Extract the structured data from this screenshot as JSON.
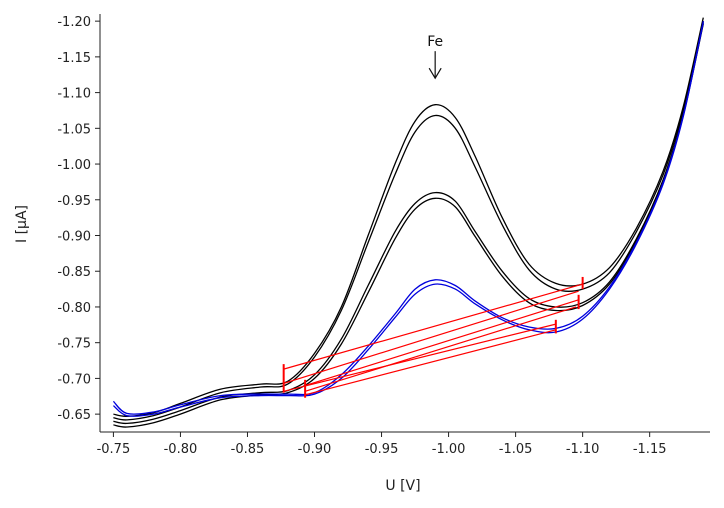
{
  "chart_data": {
    "type": "line",
    "title": "",
    "xlabel": "U [V]",
    "ylabel": "I [µA]",
    "xlim": [
      -0.74,
      -1.195
    ],
    "ylim": [
      -0.625,
      -1.21
    ],
    "x_ticks": [
      -0.75,
      -0.8,
      -0.85,
      -0.9,
      -0.95,
      -1.0,
      -1.05,
      -1.1,
      -1.15
    ],
    "x_tick_labels": [
      "-0.75",
      "-0.80",
      "-0.85",
      "-0.90",
      "-0.95",
      "-1.00",
      "-1.05",
      "-1.10",
      "-1.15"
    ],
    "y_ticks": [
      -0.65,
      -0.7,
      -0.75,
      -0.8,
      -0.85,
      -0.9,
      -0.95,
      -1.0,
      -1.05,
      -1.1,
      -1.15,
      -1.2
    ],
    "y_tick_labels": [
      "-0.65",
      "-0.70",
      "-0.75",
      "-0.80",
      "-0.85",
      "-0.90",
      "-0.95",
      "-1.00",
      "-1.05",
      "-1.10",
      "-1.15",
      "-1.20"
    ],
    "grid": false,
    "annotations": [
      {
        "text": "Fe",
        "x": -0.99,
        "y": -1.165
      }
    ],
    "series": [
      {
        "color": "#000000",
        "points": [
          [
            -0.75,
            -0.65
          ],
          [
            -0.76,
            -0.647
          ],
          [
            -0.78,
            -0.652
          ],
          [
            -0.8,
            -0.665
          ],
          [
            -0.83,
            -0.685
          ],
          [
            -0.86,
            -0.692
          ],
          [
            -0.88,
            -0.696
          ],
          [
            -0.9,
            -0.735
          ],
          [
            -0.92,
            -0.8
          ],
          [
            -0.94,
            -0.9
          ],
          [
            -0.96,
            -1.0
          ],
          [
            -0.975,
            -1.06
          ],
          [
            -0.99,
            -1.083
          ],
          [
            -1.005,
            -1.065
          ],
          [
            -1.02,
            -1.01
          ],
          [
            -1.04,
            -0.925
          ],
          [
            -1.06,
            -0.86
          ],
          [
            -1.08,
            -0.833
          ],
          [
            -1.1,
            -0.832
          ],
          [
            -1.12,
            -0.855
          ],
          [
            -1.14,
            -0.91
          ],
          [
            -1.16,
            -0.99
          ],
          [
            -1.175,
            -1.08
          ],
          [
            -1.19,
            -1.205
          ]
        ]
      },
      {
        "color": "#000000",
        "points": [
          [
            -0.75,
            -0.645
          ],
          [
            -0.76,
            -0.642
          ],
          [
            -0.78,
            -0.648
          ],
          [
            -0.8,
            -0.66
          ],
          [
            -0.83,
            -0.68
          ],
          [
            -0.86,
            -0.688
          ],
          [
            -0.88,
            -0.692
          ],
          [
            -0.9,
            -0.73
          ],
          [
            -0.92,
            -0.795
          ],
          [
            -0.94,
            -0.89
          ],
          [
            -0.96,
            -0.985
          ],
          [
            -0.975,
            -1.045
          ],
          [
            -0.99,
            -1.068
          ],
          [
            -1.005,
            -1.05
          ],
          [
            -1.02,
            -0.995
          ],
          [
            -1.04,
            -0.915
          ],
          [
            -1.06,
            -0.852
          ],
          [
            -1.08,
            -0.825
          ],
          [
            -1.1,
            -0.825
          ],
          [
            -1.12,
            -0.848
          ],
          [
            -1.14,
            -0.905
          ],
          [
            -1.16,
            -0.985
          ],
          [
            -1.175,
            -1.075
          ],
          [
            -1.19,
            -1.2
          ]
        ]
      },
      {
        "color": "#000000",
        "points": [
          [
            -0.75,
            -0.64
          ],
          [
            -0.76,
            -0.637
          ],
          [
            -0.78,
            -0.643
          ],
          [
            -0.8,
            -0.655
          ],
          [
            -0.83,
            -0.674
          ],
          [
            -0.86,
            -0.68
          ],
          [
            -0.88,
            -0.683
          ],
          [
            -0.9,
            -0.705
          ],
          [
            -0.92,
            -0.755
          ],
          [
            -0.94,
            -0.83
          ],
          [
            -0.96,
            -0.905
          ],
          [
            -0.975,
            -0.945
          ],
          [
            -0.99,
            -0.96
          ],
          [
            -1.005,
            -0.948
          ],
          [
            -1.02,
            -0.905
          ],
          [
            -1.04,
            -0.85
          ],
          [
            -1.06,
            -0.812
          ],
          [
            -1.08,
            -0.8
          ],
          [
            -1.1,
            -0.806
          ],
          [
            -1.12,
            -0.835
          ],
          [
            -1.14,
            -0.895
          ],
          [
            -1.16,
            -0.978
          ],
          [
            -1.175,
            -1.07
          ],
          [
            -1.19,
            -1.198
          ]
        ]
      },
      {
        "color": "#000000",
        "points": [
          [
            -0.75,
            -0.635
          ],
          [
            -0.76,
            -0.632
          ],
          [
            -0.78,
            -0.638
          ],
          [
            -0.8,
            -0.65
          ],
          [
            -0.83,
            -0.67
          ],
          [
            -0.86,
            -0.677
          ],
          [
            -0.88,
            -0.68
          ],
          [
            -0.9,
            -0.7
          ],
          [
            -0.92,
            -0.748
          ],
          [
            -0.94,
            -0.82
          ],
          [
            -0.96,
            -0.895
          ],
          [
            -0.975,
            -0.937
          ],
          [
            -0.99,
            -0.952
          ],
          [
            -1.005,
            -0.94
          ],
          [
            -1.02,
            -0.898
          ],
          [
            -1.04,
            -0.843
          ],
          [
            -1.06,
            -0.806
          ],
          [
            -1.08,
            -0.795
          ],
          [
            -1.1,
            -0.802
          ],
          [
            -1.12,
            -0.832
          ],
          [
            -1.14,
            -0.892
          ],
          [
            -1.16,
            -0.975
          ],
          [
            -1.175,
            -1.068
          ],
          [
            -1.19,
            -1.196
          ]
        ]
      },
      {
        "color": "#0000dd",
        "points": [
          [
            -0.75,
            -0.668
          ],
          [
            -0.76,
            -0.651
          ],
          [
            -0.78,
            -0.653
          ],
          [
            -0.8,
            -0.663
          ],
          [
            -0.83,
            -0.676
          ],
          [
            -0.86,
            -0.678
          ],
          [
            -0.88,
            -0.678
          ],
          [
            -0.9,
            -0.68
          ],
          [
            -0.92,
            -0.705
          ],
          [
            -0.94,
            -0.745
          ],
          [
            -0.96,
            -0.79
          ],
          [
            -0.975,
            -0.825
          ],
          [
            -0.99,
            -0.838
          ],
          [
            -1.005,
            -0.83
          ],
          [
            -1.02,
            -0.808
          ],
          [
            -1.04,
            -0.785
          ],
          [
            -1.06,
            -0.772
          ],
          [
            -1.08,
            -0.77
          ],
          [
            -1.1,
            -0.787
          ],
          [
            -1.12,
            -0.828
          ],
          [
            -1.14,
            -0.89
          ],
          [
            -1.16,
            -0.974
          ],
          [
            -1.175,
            -1.068
          ],
          [
            -1.19,
            -1.2
          ]
        ]
      },
      {
        "color": "#0000dd",
        "points": [
          [
            -0.75,
            -0.662
          ],
          [
            -0.76,
            -0.648
          ],
          [
            -0.78,
            -0.65
          ],
          [
            -0.8,
            -0.66
          ],
          [
            -0.83,
            -0.673
          ],
          [
            -0.86,
            -0.676
          ],
          [
            -0.88,
            -0.676
          ],
          [
            -0.9,
            -0.678
          ],
          [
            -0.92,
            -0.7
          ],
          [
            -0.94,
            -0.74
          ],
          [
            -0.96,
            -0.785
          ],
          [
            -0.975,
            -0.818
          ],
          [
            -0.99,
            -0.832
          ],
          [
            -1.005,
            -0.825
          ],
          [
            -1.02,
            -0.804
          ],
          [
            -1.04,
            -0.782
          ],
          [
            -1.06,
            -0.768
          ],
          [
            -1.08,
            -0.765
          ],
          [
            -1.1,
            -0.783
          ],
          [
            -1.12,
            -0.825
          ],
          [
            -1.14,
            -0.888
          ],
          [
            -1.16,
            -0.972
          ],
          [
            -1.175,
            -1.066
          ],
          [
            -1.19,
            -1.198
          ]
        ]
      }
    ],
    "baselines": [
      {
        "color": "#ff0000",
        "x1": -0.877,
        "y1": -0.713,
        "x2": -1.1,
        "y2": -0.832
      },
      {
        "color": "#ff0000",
        "x1": -0.877,
        "y1": -0.693,
        "x2": -1.097,
        "y2": -0.822
      },
      {
        "color": "#ff0000",
        "x1": -0.893,
        "y1": -0.69,
        "x2": -1.097,
        "y2": -0.81
      },
      {
        "color": "#ff0000",
        "x1": -0.893,
        "y1": -0.682,
        "x2": -1.095,
        "y2": -0.8
      },
      {
        "color": "#ff0000",
        "x1": -0.877,
        "y1": -0.682,
        "x2": -1.08,
        "y2": -0.776
      },
      {
        "color": "#ff0000",
        "x1": -0.893,
        "y1": -0.677,
        "x2": -1.08,
        "y2": -0.768
      }
    ],
    "baseline_markers": [
      {
        "color": "#ff0000",
        "x": -0.877,
        "y1": -0.68,
        "y2": -0.72
      },
      {
        "color": "#ff0000",
        "x": -0.893,
        "y1": -0.673,
        "y2": -0.698
      },
      {
        "color": "#ff0000",
        "x": -1.08,
        "y1": -0.763,
        "y2": -0.782
      },
      {
        "color": "#ff0000",
        "x": -1.097,
        "y1": -0.797,
        "y2": -0.817
      },
      {
        "color": "#ff0000",
        "x": -1.1,
        "y1": -0.825,
        "y2": -0.842
      }
    ]
  }
}
